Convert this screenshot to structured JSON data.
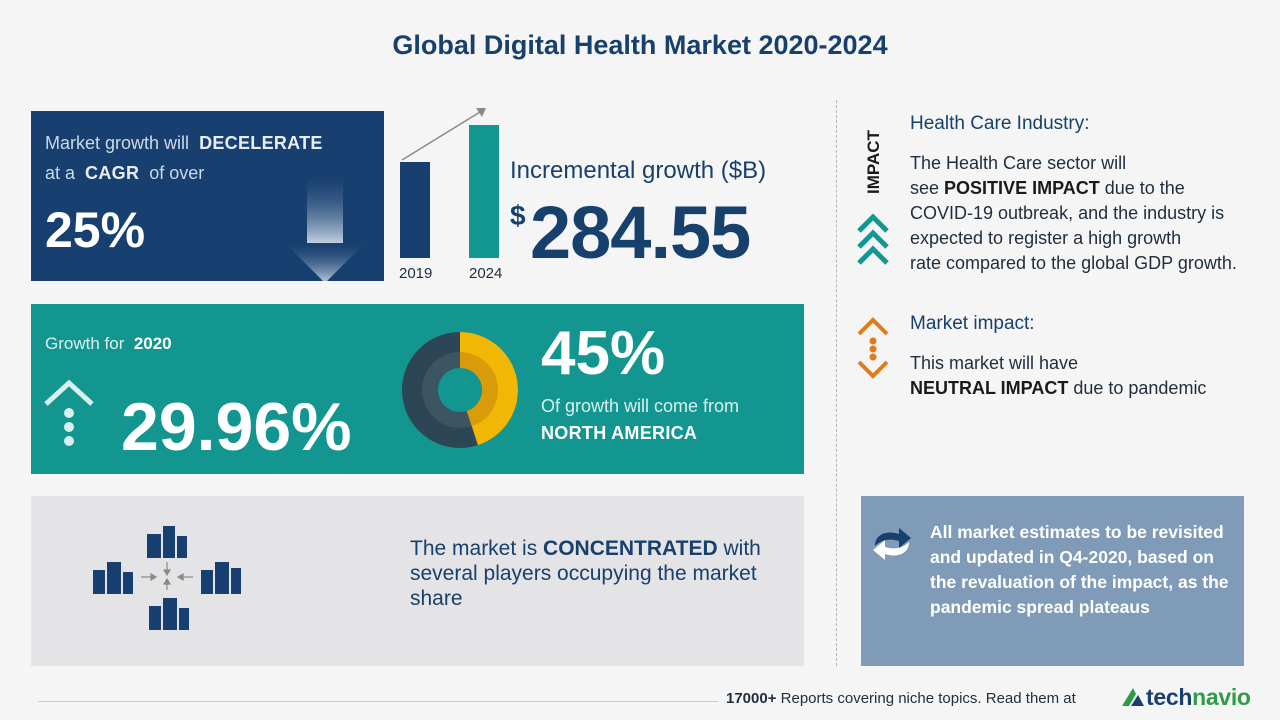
{
  "header": {
    "title": "Global Digital Health Market 2020-2024"
  },
  "cagr_panel": {
    "line1_prefix": "Market growth will",
    "line1_strong": "DECELERATE",
    "line2_prefix": "at a",
    "line2_strong": "CAGR",
    "line2_suffix": "of over",
    "value": "25%"
  },
  "incremental": {
    "year_start": "2019",
    "year_end": "2024",
    "label": "Incremental growth ($B)",
    "currency": "$",
    "value": "284.55"
  },
  "growth_panel": {
    "label": "Growth for",
    "year": "2020",
    "value": "29.96%",
    "share_value": "45%",
    "share_text": "Of growth will come from",
    "region": "NORTH AMERICA",
    "share_fraction": 0.45
  },
  "concentration_panel": {
    "text_prefix": "The market is",
    "text_strong": "CONCENTRATED",
    "text_suffix": "with several players occupying the market share"
  },
  "impact": {
    "vertical_label": "IMPACT",
    "industry_title": "Health Care Industry:",
    "industry_text_1": "The Health Care sector will",
    "industry_text_2_prefix": "see",
    "industry_text_2_strong": "POSITIVE IMPACT",
    "industry_text_2_suffix": "due to the",
    "industry_text_3": "COVID-19 outbreak, and the industry is",
    "industry_text_4": "expected to register a high growth",
    "industry_text_5": "rate compared to the global GDP growth.",
    "market_title": "Market impact:",
    "market_text_1": "This market will have",
    "market_text_2_strong": "NEUTRAL IMPACT",
    "market_text_2_suffix": "due to pandemic"
  },
  "note": {
    "text": "All market estimates to be revisited and updated in Q4-2020, based on the revaluation of the impact, as the pandemic spread plateaus"
  },
  "footer": {
    "count": "17000+",
    "text": "Reports covering niche topics. Read them at",
    "brand_a": "tech",
    "brand_b": "navio"
  },
  "colors": {
    "navy": "#173f6f",
    "teal": "#12968f",
    "amber": "#f2b705",
    "orange": "#e07b1a",
    "grey_panel": "#e4e4e6",
    "note_blue": "#7f9bb8"
  }
}
